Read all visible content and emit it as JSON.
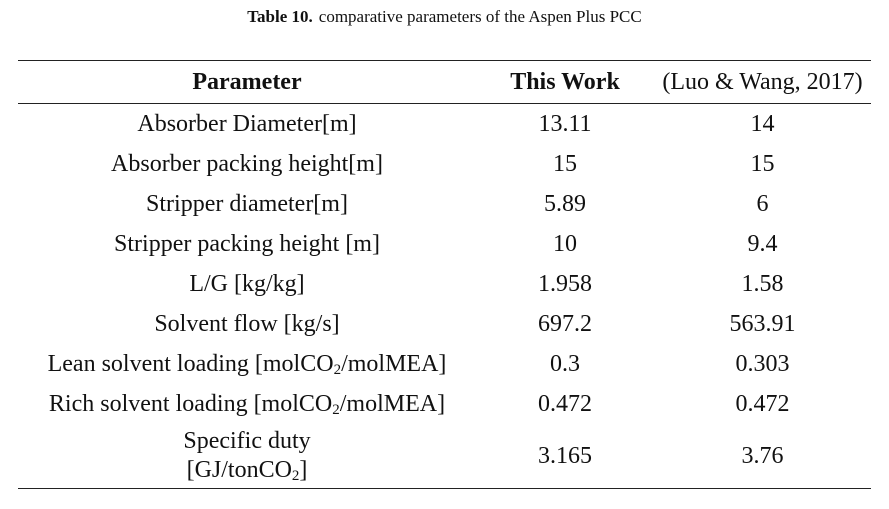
{
  "caption": {
    "label": "Table 10.",
    "text": "comparative parameters of the Aspen Plus PCC"
  },
  "table": {
    "headers": [
      "Parameter",
      "This Work",
      "(Luo & Wang, 2017)"
    ],
    "rows": [
      {
        "param": "Absorber Diameter[m]",
        "this_work": "13.11",
        "luo_wang": "14"
      },
      {
        "param": "Absorber packing height[m]",
        "this_work": "15",
        "luo_wang": "15"
      },
      {
        "param": "Stripper diameter[m]",
        "this_work": "5.89",
        "luo_wang": "6"
      },
      {
        "param": "Stripper packing height [m]",
        "this_work": "10",
        "luo_wang": "9.4"
      },
      {
        "param": "L/G [kg/kg]",
        "this_work": "1.958",
        "luo_wang": "1.58"
      },
      {
        "param": "Solvent flow [kg/s]",
        "this_work": "697.2",
        "luo_wang": "563.91"
      },
      {
        "param_pre": "Lean solvent loading [molCO",
        "param_sub": "2",
        "param_post": "/molMEA]",
        "this_work": "0.3",
        "luo_wang": "0.303"
      },
      {
        "param_pre": "Rich solvent loading [molCO",
        "param_sub": "2",
        "param_post": "/molMEA]",
        "this_work": "0.472",
        "luo_wang": "0.472"
      },
      {
        "param_line1": "Specific duty",
        "param_line2_pre": "[GJ/tonCO",
        "param_line2_sub": "2",
        "param_line2_post": "]",
        "this_work": "3.165",
        "luo_wang": "3.76"
      }
    ]
  }
}
